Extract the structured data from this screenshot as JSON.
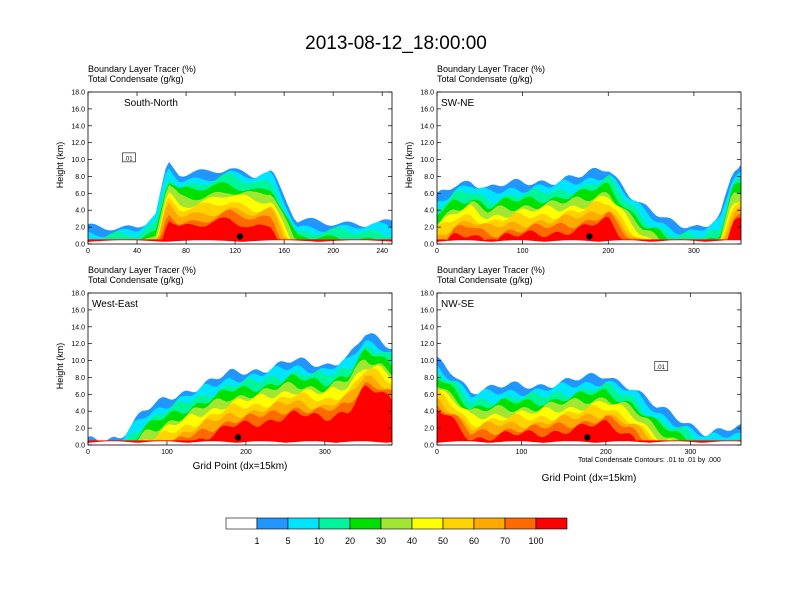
{
  "figure": {
    "title": "2013-08-12_18:00:00",
    "contour_note": "Total Condensate Contours: .01 to .01 by .000"
  },
  "colors": {
    "levels": [
      "#ffffff",
      "#2196ff",
      "#00e5ff",
      "#00f49b",
      "#00e000",
      "#a0e632",
      "#ffff00",
      "#ffd200",
      "#ffaa00",
      "#ff6a00",
      "#ff0000"
    ],
    "line": "#000000"
  },
  "chart_data": [
    {
      "type": "heatmap",
      "panel": "top-left",
      "annotation": "South-North",
      "title_line1": "Boundary Layer Tracer    (%)",
      "title_line2": "Total Condensate    (g/kg)",
      "ylabel": "Height (km)",
      "xlabel": "",
      "ylim": [
        0,
        18
      ],
      "xlim": [
        0,
        248
      ],
      "xticks": [
        0,
        40,
        80,
        120,
        160,
        200,
        240
      ],
      "yticks": [
        "0.0",
        "2.0",
        "4.0",
        "6.0",
        "8.0",
        "10.0",
        "12.0",
        "14.0",
        "16.0",
        "18.0"
      ],
      "contour_label": ".01",
      "contour_label_pos": [
        33,
        10.2
      ],
      "marker_x": 124,
      "tracer_top": [
        [
          0,
          2.3
        ],
        [
          40,
          2.6
        ],
        [
          55,
          4
        ],
        [
          65,
          10
        ],
        [
          75,
          8.5
        ],
        [
          95,
          8.8
        ],
        [
          115,
          9.5
        ],
        [
          135,
          8.8
        ],
        [
          150,
          9
        ],
        [
          160,
          6
        ],
        [
          170,
          3
        ],
        [
          248,
          3
        ]
      ],
      "level_offsets": [
        0.5,
        1.1,
        1.8,
        2.6,
        3.4,
        4.2,
        5.0,
        5.8,
        6.6,
        7.4
      ]
    },
    {
      "type": "heatmap",
      "panel": "top-right",
      "annotation": "SW-NE",
      "title_line1": "Boundary Layer Tracer    (%)",
      "title_line2": "Total Condensate    (g/kg)",
      "ylabel": "Height (km)",
      "xlabel": "",
      "ylim": [
        0,
        18
      ],
      "xlim": [
        0,
        355
      ],
      "xticks": [
        0,
        100,
        200,
        300
      ],
      "yticks": [
        "0.0",
        "2.0",
        "4.0",
        "6.0",
        "8.0",
        "10.0",
        "12.0",
        "14.0",
        "16.0",
        "18.0"
      ],
      "contour_label": "",
      "contour_label_pos": [
        0,
        0
      ],
      "marker_x": 178,
      "tracer_top": [
        [
          0,
          6
        ],
        [
          20,
          7.5
        ],
        [
          40,
          8
        ],
        [
          60,
          7
        ],
        [
          80,
          7.5
        ],
        [
          110,
          7.8
        ],
        [
          140,
          8
        ],
        [
          170,
          8.5
        ],
        [
          200,
          9.5
        ],
        [
          220,
          7
        ],
        [
          240,
          5
        ],
        [
          270,
          3
        ],
        [
          300,
          2.5
        ],
        [
          330,
          3.5
        ],
        [
          345,
          9
        ],
        [
          355,
          9.5
        ]
      ],
      "level_offsets": [
        0.5,
        1.2,
        2.0,
        2.8,
        3.6,
        4.3,
        5.0,
        5.8,
        6.6,
        7.4
      ]
    },
    {
      "type": "heatmap",
      "panel": "bottom-left",
      "annotation": "West-East",
      "title_line1": "Boundary Layer Tracer    (%)",
      "title_line2": "Total Condensate    (g/kg)",
      "ylabel": "Height (km)",
      "xlabel": "Grid Point (dx=15km)",
      "ylim": [
        0,
        18
      ],
      "xlim": [
        0,
        385
      ],
      "xticks": [
        0,
        100,
        200,
        300
      ],
      "yticks": [
        "0.0",
        "2.0",
        "4.0",
        "6.0",
        "8.0",
        "10.0",
        "12.0",
        "14.0",
        "16.0",
        "18.0"
      ],
      "contour_label": "",
      "contour_label_pos": [
        0,
        0
      ],
      "marker_x": 190,
      "tracer_top": [
        [
          0,
          1
        ],
        [
          40,
          1.5
        ],
        [
          55,
          3
        ],
        [
          70,
          4.5
        ],
        [
          100,
          6
        ],
        [
          140,
          7.5
        ],
        [
          180,
          9
        ],
        [
          220,
          9.5
        ],
        [
          260,
          10.5
        ],
        [
          300,
          10
        ],
        [
          330,
          11
        ],
        [
          350,
          13.5
        ],
        [
          370,
          13
        ],
        [
          385,
          12
        ]
      ],
      "level_offsets": [
        0.6,
        1.3,
        2.1,
        2.9,
        3.7,
        4.4,
        5.2,
        6.0,
        6.8,
        7.6
      ]
    },
    {
      "type": "heatmap",
      "panel": "bottom-right",
      "annotation": "NW-SE",
      "title_line1": "Boundary Layer Tracer    (%)",
      "title_line2": "Total Condensate    (g/kg)",
      "ylabel": "",
      "xlabel": "Grid Point (dx=15km)",
      "ylim": [
        0,
        18
      ],
      "xlim": [
        0,
        360
      ],
      "xticks": [
        0,
        100,
        200,
        300
      ],
      "yticks": [
        "0.0",
        "2.0",
        "4.0",
        "6.0",
        "8.0",
        "10.0",
        "12.0",
        "14.0",
        "16.0",
        "18.0"
      ],
      "contour_label": ".01",
      "contour_label_pos": [
        265,
        9.3
      ],
      "marker_x": 178,
      "tracer_top": [
        [
          0,
          10.5
        ],
        [
          20,
          9
        ],
        [
          40,
          7
        ],
        [
          80,
          7.5
        ],
        [
          120,
          7.6
        ],
        [
          160,
          8.2
        ],
        [
          200,
          8.8
        ],
        [
          230,
          7.5
        ],
        [
          260,
          5
        ],
        [
          290,
          3.5
        ],
        [
          320,
          2
        ],
        [
          360,
          2.5
        ]
      ],
      "level_offsets": [
        0.6,
        1.3,
        2.1,
        2.8,
        3.5,
        4.2,
        4.9,
        5.6,
        6.3,
        7.0
      ]
    }
  ],
  "colorbar": {
    "labels": [
      "1",
      "5",
      "10",
      "20",
      "30",
      "40",
      "50",
      "60",
      "70",
      "100"
    ]
  }
}
